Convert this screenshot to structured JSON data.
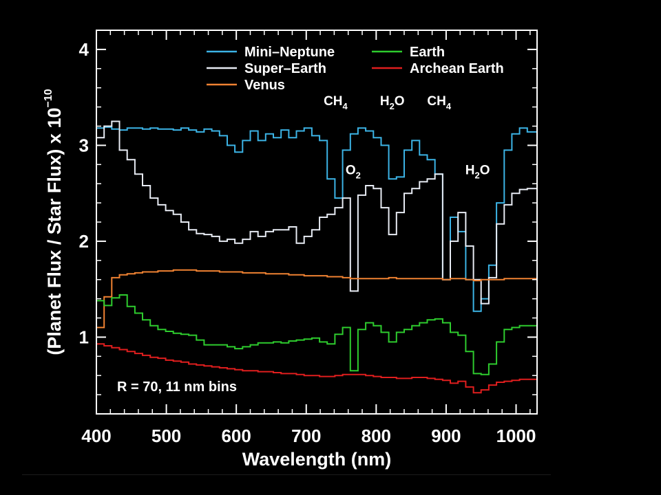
{
  "colors": {
    "background": "#000000",
    "axis": "#ffffff",
    "mini_neptune": "#3cb4e6",
    "super_earth": "#e8ecf4",
    "venus": "#f08232",
    "earth": "#2ecc2e",
    "archean_earth": "#e01e1e"
  },
  "chart_data": {
    "type": "line",
    "step": true,
    "xlabel": "Wavelength (nm)",
    "ylabel": {
      "prefix": "(Planet Flux / Star Flux) x 10",
      "exponent": "−10"
    },
    "xlim": [
      400,
      1030
    ],
    "ylim": [
      0.2,
      4.2
    ],
    "x_ticks": [
      400,
      500,
      600,
      700,
      800,
      900,
      1000
    ],
    "y_ticks": [
      1,
      2,
      3,
      4
    ],
    "grid": false,
    "legend_position": "top",
    "legend_columns": [
      [
        "Mini–Neptune",
        "Super–Earth",
        "Venus"
      ],
      [
        "Earth",
        "Archean Earth"
      ]
    ],
    "series": [
      {
        "name": "Mini–Neptune",
        "color_key": "mini_neptune",
        "x": [
          400,
          411,
          422,
          433,
          444,
          455,
          466,
          477,
          488,
          499,
          510,
          521,
          532,
          543,
          554,
          565,
          576,
          587,
          598,
          609,
          620,
          631,
          642,
          653,
          664,
          675,
          686,
          697,
          708,
          719,
          730,
          741,
          752,
          763,
          774,
          785,
          796,
          807,
          818,
          829,
          840,
          851,
          862,
          873,
          884,
          895,
          906,
          917,
          928,
          939,
          950,
          961,
          972,
          983,
          994,
          1005,
          1016,
          1030
        ],
        "y": [
          3.18,
          3.19,
          3.17,
          3.16,
          3.18,
          3.18,
          3.17,
          3.18,
          3.17,
          3.17,
          3.16,
          3.18,
          3.16,
          3.14,
          3.17,
          3.15,
          3.1,
          3.0,
          2.93,
          3.05,
          3.15,
          3.05,
          3.12,
          3.08,
          3.16,
          3.08,
          3.15,
          3.18,
          3.1,
          3.05,
          2.65,
          2.45,
          2.95,
          3.12,
          3.18,
          3.15,
          3.08,
          3.0,
          2.65,
          2.67,
          2.95,
          3.05,
          2.9,
          2.85,
          2.7,
          1.6,
          2.25,
          2.1,
          1.6,
          1.27,
          1.4,
          1.75,
          2.4,
          2.95,
          3.12,
          3.18,
          3.14,
          3.14
        ]
      },
      {
        "name": "Super–Earth",
        "color_key": "super_earth",
        "x": [
          400,
          411,
          422,
          433,
          444,
          455,
          466,
          477,
          488,
          499,
          510,
          521,
          532,
          543,
          554,
          565,
          576,
          587,
          598,
          609,
          620,
          631,
          642,
          653,
          664,
          675,
          686,
          697,
          708,
          719,
          730,
          741,
          752,
          763,
          774,
          785,
          796,
          807,
          818,
          829,
          840,
          851,
          862,
          873,
          884,
          895,
          906,
          917,
          928,
          939,
          950,
          961,
          972,
          983,
          994,
          1005,
          1016,
          1030
        ],
        "y": [
          3.08,
          3.2,
          3.25,
          2.95,
          2.85,
          2.7,
          2.58,
          2.45,
          2.38,
          2.32,
          2.28,
          2.2,
          2.12,
          2.08,
          2.07,
          2.05,
          2.0,
          2.02,
          1.98,
          2.02,
          2.1,
          2.05,
          2.1,
          2.12,
          2.12,
          2.15,
          1.98,
          2.05,
          2.12,
          2.25,
          2.28,
          2.35,
          2.45,
          1.48,
          2.48,
          2.58,
          2.55,
          2.35,
          2.07,
          2.3,
          2.5,
          2.55,
          2.62,
          2.65,
          2.7,
          1.6,
          2.0,
          2.3,
          1.95,
          1.6,
          1.35,
          1.62,
          2.18,
          2.38,
          2.5,
          2.54,
          2.55,
          2.55
        ]
      },
      {
        "name": "Venus",
        "color_key": "venus",
        "x": [
          400,
          411,
          422,
          433,
          444,
          455,
          466,
          477,
          488,
          499,
          510,
          521,
          532,
          543,
          554,
          565,
          576,
          587,
          598,
          609,
          620,
          631,
          642,
          653,
          664,
          675,
          686,
          697,
          708,
          719,
          730,
          741,
          752,
          763,
          774,
          785,
          796,
          807,
          818,
          829,
          840,
          851,
          862,
          873,
          884,
          895,
          906,
          917,
          928,
          939,
          950,
          961,
          972,
          983,
          994,
          1005,
          1016,
          1030
        ],
        "y": [
          1.1,
          1.42,
          1.62,
          1.65,
          1.66,
          1.67,
          1.68,
          1.68,
          1.69,
          1.69,
          1.7,
          1.7,
          1.7,
          1.69,
          1.69,
          1.69,
          1.68,
          1.68,
          1.68,
          1.67,
          1.67,
          1.67,
          1.66,
          1.66,
          1.66,
          1.65,
          1.65,
          1.64,
          1.64,
          1.64,
          1.63,
          1.63,
          1.62,
          1.61,
          1.61,
          1.61,
          1.61,
          1.61,
          1.62,
          1.61,
          1.61,
          1.61,
          1.61,
          1.61,
          1.61,
          1.6,
          1.61,
          1.61,
          1.6,
          1.59,
          1.6,
          1.6,
          1.6,
          1.61,
          1.61,
          1.61,
          1.61,
          1.6
        ]
      },
      {
        "name": "Earth",
        "color_key": "earth",
        "x": [
          400,
          411,
          422,
          433,
          444,
          455,
          466,
          477,
          488,
          499,
          510,
          521,
          532,
          543,
          554,
          565,
          576,
          587,
          598,
          609,
          620,
          631,
          642,
          653,
          664,
          675,
          686,
          697,
          708,
          719,
          730,
          741,
          752,
          763,
          774,
          785,
          796,
          807,
          818,
          829,
          840,
          851,
          862,
          873,
          884,
          895,
          906,
          917,
          928,
          939,
          950,
          961,
          972,
          983,
          994,
          1005,
          1016,
          1030
        ],
        "y": [
          1.38,
          1.33,
          1.41,
          1.44,
          1.32,
          1.25,
          1.18,
          1.12,
          1.08,
          1.06,
          1.04,
          1.03,
          1.02,
          0.97,
          0.92,
          0.92,
          0.92,
          0.9,
          0.88,
          0.9,
          0.92,
          0.94,
          0.94,
          0.95,
          0.94,
          0.96,
          0.97,
          0.98,
          0.99,
          0.95,
          0.93,
          1.03,
          1.1,
          0.65,
          1.08,
          1.15,
          1.12,
          1.05,
          0.95,
          1.05,
          1.08,
          1.12,
          1.15,
          1.18,
          1.19,
          1.15,
          1.05,
          1.02,
          0.85,
          0.62,
          0.61,
          0.72,
          0.95,
          1.08,
          1.1,
          1.12,
          1.12,
          1.12
        ]
      },
      {
        "name": "Archean Earth",
        "color_key": "archean_earth",
        "x": [
          400,
          411,
          422,
          433,
          444,
          455,
          466,
          477,
          488,
          499,
          510,
          521,
          532,
          543,
          554,
          565,
          576,
          587,
          598,
          609,
          620,
          631,
          642,
          653,
          664,
          675,
          686,
          697,
          708,
          719,
          730,
          741,
          752,
          763,
          774,
          785,
          796,
          807,
          818,
          829,
          840,
          851,
          862,
          873,
          884,
          895,
          906,
          917,
          928,
          939,
          950,
          961,
          972,
          983,
          994,
          1005,
          1016,
          1030
        ],
        "y": [
          0.93,
          0.91,
          0.89,
          0.87,
          0.85,
          0.83,
          0.81,
          0.79,
          0.78,
          0.76,
          0.75,
          0.74,
          0.72,
          0.71,
          0.7,
          0.69,
          0.68,
          0.67,
          0.66,
          0.65,
          0.65,
          0.64,
          0.64,
          0.63,
          0.62,
          0.62,
          0.61,
          0.6,
          0.6,
          0.59,
          0.59,
          0.6,
          0.61,
          0.61,
          0.61,
          0.6,
          0.59,
          0.58,
          0.58,
          0.57,
          0.57,
          0.58,
          0.58,
          0.57,
          0.56,
          0.55,
          0.52,
          0.54,
          0.48,
          0.42,
          0.45,
          0.5,
          0.53,
          0.54,
          0.55,
          0.56,
          0.56,
          0.56
        ]
      }
    ],
    "annotations": [
      {
        "base": "CH",
        "sub": "4",
        "x": 742,
        "y": 3.42
      },
      {
        "base": "H",
        "sub": "2",
        "tail": "O",
        "x": 823,
        "y": 3.42
      },
      {
        "base": "CH",
        "sub": "4",
        "x": 890,
        "y": 3.42
      },
      {
        "base": "O",
        "sub": "2",
        "x": 767,
        "y": 2.7
      },
      {
        "base": "H",
        "sub": "2",
        "tail": "O",
        "x": 945,
        "y": 2.7
      }
    ],
    "note": "R = 70, 11 nm bins"
  }
}
